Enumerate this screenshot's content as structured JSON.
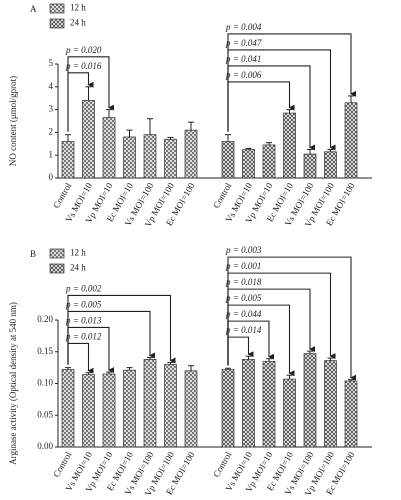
{
  "chart_data": [
    {
      "type": "bar",
      "panel_label": "A",
      "y_label": "NO content (μmol/gprot)",
      "categories": [
        "Control",
        "Vs MOI=10",
        "Vp MOI=10",
        "Ec MOI=10",
        "Vs MOI=100",
        "Vp MOI=100",
        "Ec MOI=100"
      ],
      "ylim": [
        0,
        5
      ],
      "yticks": [
        0,
        1,
        2,
        3,
        4,
        5
      ],
      "series": [
        {
          "name": "12 h",
          "color": "#777777",
          "values": [
            1.6,
            3.4,
            2.65,
            1.8,
            1.9,
            1.7,
            2.1
          ],
          "errors": [
            0.3,
            0.6,
            0.35,
            0.3,
            0.7,
            0.08,
            0.35
          ],
          "p_labels": [
            null,
            "p = 0.016",
            "p = 0.020",
            null,
            null,
            null,
            null
          ]
        },
        {
          "name": "24 h",
          "color": "#444444",
          "values": [
            1.6,
            1.25,
            1.45,
            2.85,
            1.05,
            1.15,
            3.3
          ],
          "errors": [
            0.3,
            0.05,
            0.1,
            0.15,
            0.2,
            0.1,
            0.3
          ],
          "p_labels": [
            null,
            null,
            null,
            "p = 0.006",
            "p = 0.041",
            "p = 0.047",
            "p = 0.004"
          ]
        }
      ]
    },
    {
      "type": "bar",
      "panel_label": "B",
      "y_label": "Arginase activity (Optical density at 540 nm)",
      "categories": [
        "Control",
        "Vs MOI=10",
        "Vp MOI=10",
        "Ec MOI=10",
        "Vs MOI=100",
        "Vp MOI=100",
        "Ec MOI=100"
      ],
      "ylim": [
        0,
        0.2
      ],
      "yticks": [
        {
          "value": 0,
          "label": "0.00"
        },
        0.05,
        {
          "value": 0.1,
          "label": "0.10"
        },
        0.15,
        {
          "value": 0.2,
          "label": "0.20"
        }
      ],
      "series": [
        {
          "name": "12 h",
          "color": "#777777",
          "values": [
            0.122,
            0.114,
            0.115,
            0.121,
            0.138,
            0.13,
            0.12
          ],
          "errors": [
            0.003,
            0.003,
            0.003,
            0.004,
            0.003,
            0.003,
            0.008
          ],
          "p_labels": [
            null,
            "p = 0.012",
            "p = 0.013",
            null,
            "p = 0.005",
            "p = 0.002",
            null
          ]
        },
        {
          "name": "24 h",
          "color": "#444444",
          "values": [
            0.122,
            0.138,
            0.135,
            0.107,
            0.147,
            0.136,
            0.104
          ],
          "errors": [
            0.002,
            0.005,
            0.004,
            0.006,
            0.004,
            0.004,
            0.002
          ],
          "p_labels": [
            null,
            "p = 0.014",
            "p = 0.044",
            "p = 0.005",
            "p = 0.018",
            "p = 0.001",
            "p = 0.003"
          ]
        }
      ]
    }
  ]
}
